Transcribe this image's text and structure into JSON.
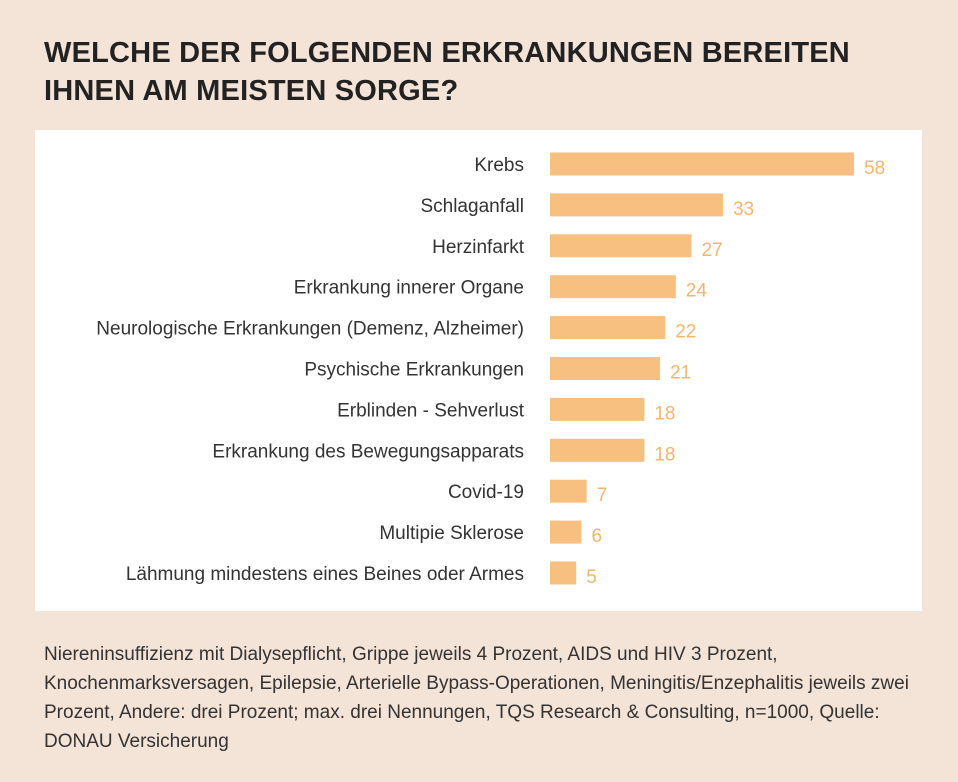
{
  "title": "WELCHE DER FOLGENDEN ERKRANKUNGEN BEREITEN IHNEN AM MEISTEN SORGE?",
  "footnote": "Niereninsuffizienz mit Dialysepflicht, Grippe jeweils 4 Prozent, AIDS und HIV 3 Prozent, Knochenmarksversagen, Epilepsie, Arterielle Bypass-Operationen, Meningitis/Enzephalitis jeweils zwei Prozent, Andere: drei Prozent; max. drei Nennungen, TQS Research & Consulting, n=1000, Quelle: DONAU Versicherung",
  "colors": {
    "bar": "#f7bf80",
    "value_label": "#f2b66f",
    "background": "#f4e3d7",
    "panel": "#ffffff"
  },
  "chart_data": {
    "type": "bar",
    "orientation": "horizontal",
    "categories": [
      "Krebs",
      "Schlaganfall",
      "Herzinfarkt",
      "Erkrankung innerer Organe",
      "Neurologische Erkrankungen (Demenz, Alzheimer)",
      "Psychische Erkrankungen",
      "Erblinden - Sehverlust",
      "Erkrankung des Bewegungsapparats",
      "Covid-19",
      "Multipie Sklerose",
      "Lähmung mindestens eines Beines oder Armes"
    ],
    "values": [
      58,
      33,
      27,
      24,
      22,
      21,
      18,
      18,
      7,
      6,
      5
    ],
    "xlim": [
      0,
      58
    ],
    "grid": false,
    "legend": "none"
  }
}
